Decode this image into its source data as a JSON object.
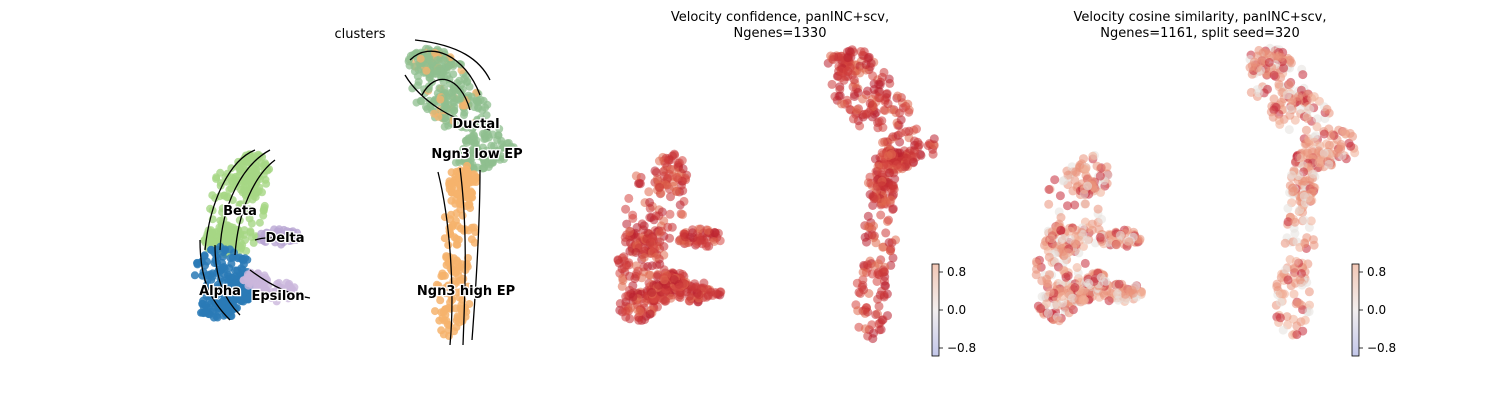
{
  "panels": [
    {
      "title": "clusters",
      "clusters": [
        {
          "name": "Beta",
          "color": "#a6d785"
        },
        {
          "name": "Delta",
          "color": "#b9a6d3"
        },
        {
          "name": "Alpha",
          "color": "#2a7ab6"
        },
        {
          "name": "Epsilon",
          "color": "#cbb6dc"
        },
        {
          "name": "Ductal",
          "color": "#8fbf8f"
        },
        {
          "name": "Ngn3 low EP",
          "color": "#8fbf8f"
        },
        {
          "name": "Ngn3 high EP",
          "color": "#f6b36c"
        }
      ]
    },
    {
      "title": "Velocity confidence, panINC+scv,\nNgenes=1330",
      "colorbar": {
        "ticks": [
          "0.8",
          "0.0",
          "−0.8"
        ],
        "min": -0.8,
        "max": 0.8
      },
      "point_color": "#cc3a3a"
    },
    {
      "title": "Velocity cosine similarity, panINC+scv,\nNgenes=1161, split seed=320",
      "colorbar": {
        "ticks": [
          "0.8",
          "0.0",
          "−0.8"
        ],
        "min": -0.8,
        "max": 0.8
      },
      "point_color": "#e9917a"
    }
  ],
  "chart_data": [
    {
      "type": "scatter",
      "title": "clusters",
      "legend": "on data",
      "series": [
        {
          "name": "Beta"
        },
        {
          "name": "Delta"
        },
        {
          "name": "Alpha"
        },
        {
          "name": "Epsilon"
        },
        {
          "name": "Ductal"
        },
        {
          "name": "Ngn3 low EP"
        },
        {
          "name": "Ngn3 high EP"
        }
      ]
    },
    {
      "type": "scatter",
      "title": "Velocity confidence, panINC+scv,\nNgenes=1330",
      "colorbar_range": [
        -0.8,
        0.8
      ]
    },
    {
      "type": "scatter",
      "title": "Velocity cosine similarity, panINC+scv,\nNgenes=1161, split seed=320",
      "colorbar_range": [
        -0.8,
        0.8
      ]
    }
  ]
}
